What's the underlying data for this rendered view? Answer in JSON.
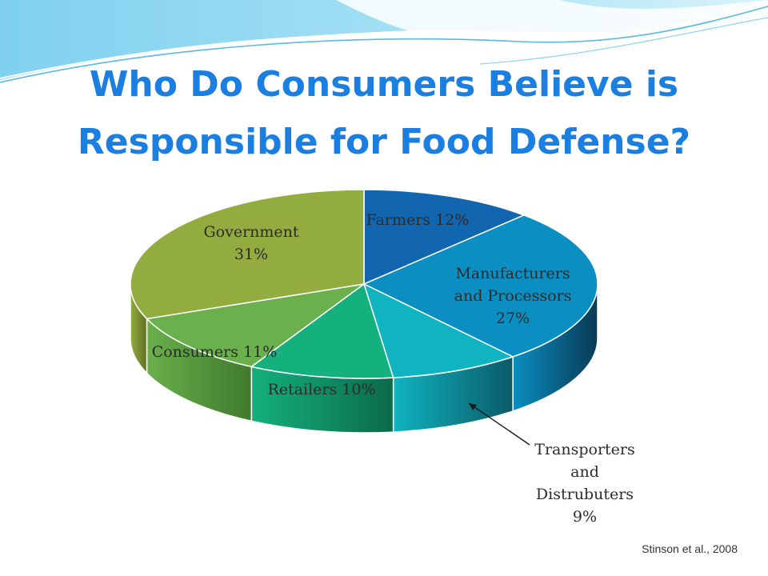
{
  "slide": {
    "title_line1": "Who Do Consumers Believe is",
    "title_line2": "Responsible for Food Defense?",
    "source": "Stinson et al., 2008",
    "accent_color": "#1a7fe0"
  },
  "chart_data": {
    "type": "pie",
    "style": "3d",
    "slices": [
      {
        "name": "Farmers",
        "value": 12,
        "label_lines": [
          "Farmers 12%"
        ],
        "color": "#1266b0",
        "side_color": "#0a3d6b"
      },
      {
        "name": "Manufacturers and Processors",
        "value": 27,
        "label_lines": [
          "Manufacturers",
          "and Processors",
          "27%"
        ],
        "color": "#0b8ec1",
        "side_color": "#0a3a55"
      },
      {
        "name": "Transporters and Distrubuters",
        "value": 9,
        "label_lines": [
          "Transporters",
          "and",
          "Distrubuters",
          "9%"
        ],
        "color": "#0fb4c0",
        "side_color": "#0c5a68"
      },
      {
        "name": "Retailers",
        "value": 10,
        "label_lines": [
          "Retailers 10%"
        ],
        "color": "#14b07e",
        "side_color": "#0b6a4a"
      },
      {
        "name": "Consumers",
        "value": 11,
        "label_lines": [
          "Consumers 11%"
        ],
        "color": "#6ab04c",
        "side_color": "#3f7a2e"
      },
      {
        "name": "Government",
        "value": 31,
        "label_lines": [
          "Government",
          "31%"
        ],
        "color": "#93ac40",
        "side_color": "#5e7224"
      }
    ]
  }
}
